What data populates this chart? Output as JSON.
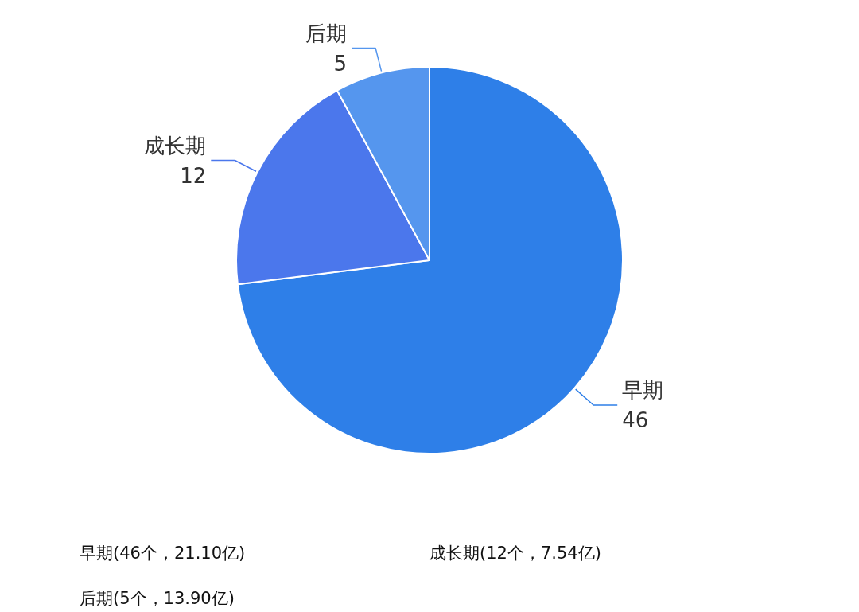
{
  "chart_data": {
    "type": "pie",
    "categories": [
      "早期",
      "成长期",
      "后期"
    ],
    "values": [
      46,
      12,
      5
    ],
    "colors": [
      "#2e7fe8",
      "#4b77ec",
      "#5596ee"
    ],
    "data_labels": true,
    "annotations": [
      "早期(46个，21.10亿)",
      "成长期(12个，7.54亿)",
      "后期(5个，13.90亿)"
    ]
  }
}
